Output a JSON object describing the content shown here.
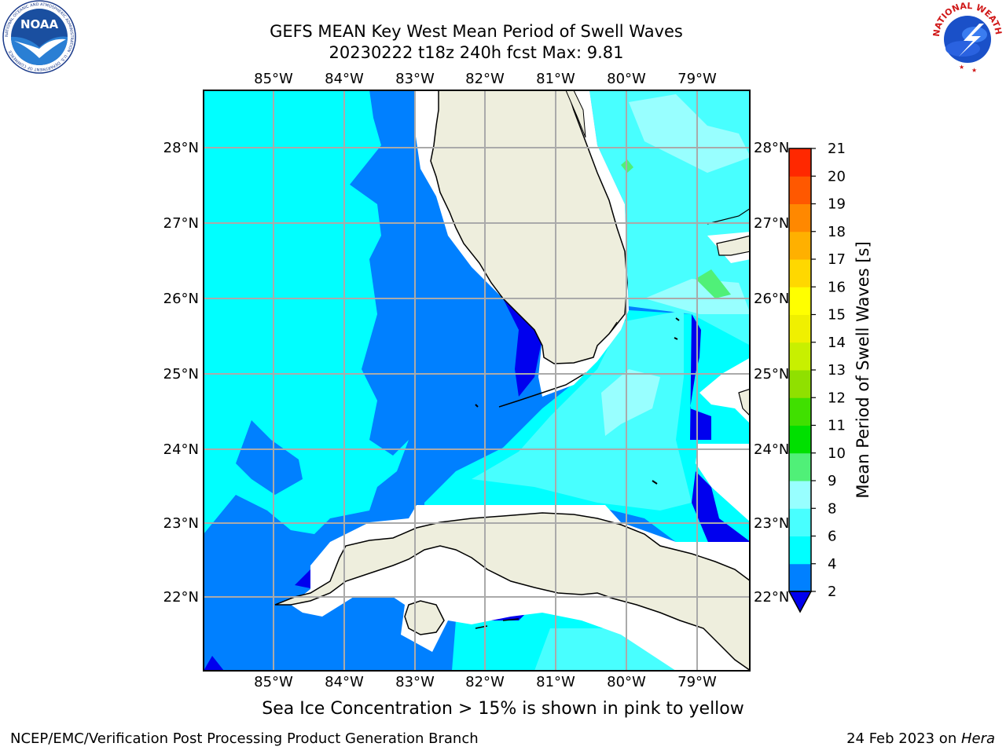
{
  "header": {
    "title_line1": "GEFS MEAN Key West Mean Period of Swell Waves",
    "title_line2": "20230222 t18z 240h fcst    Max: 9.81"
  },
  "logos": {
    "left": {
      "icon": "noaa-logo",
      "text": "NOAA",
      "ring_text": "NATIONAL OCEANIC AND ATMOSPHERIC ADMINISTRATION · U.S. DEPARTMENT OF COMMERCE"
    },
    "right": {
      "icon": "nws-logo",
      "ring_text": "NATIONAL WEATHER SERVICE"
    }
  },
  "map": {
    "lon_labels": [
      "85°W",
      "84°W",
      "83°W",
      "82°W",
      "81°W",
      "80°W",
      "79°W"
    ],
    "lat_labels": [
      "28°N",
      "27°N",
      "26°N",
      "25°N",
      "24°N",
      "23°N",
      "22°N"
    ],
    "colors": {
      "land": "#eeeedd",
      "ocean_2_4": "#0080ff",
      "ocean_4_6": "#00ffff",
      "ocean_6_8": "#48ffff",
      "ocean_8_9": "#98ffff",
      "ocean_lt2": "#0000ee",
      "grid": "#aaaaaa"
    }
  },
  "colorbar": {
    "label": "Mean Period of Swell Waves [s]",
    "ticks": [
      "2",
      "4",
      "6",
      "8",
      "9",
      "10",
      "11",
      "12",
      "13",
      "14",
      "15",
      "16",
      "17",
      "18",
      "19",
      "20",
      "21"
    ],
    "colors": [
      "#0080ff",
      "#00ffff",
      "#48ffff",
      "#98ffff",
      "#50f078",
      "#00e000",
      "#40e000",
      "#90e000",
      "#c8f000",
      "#f0f000",
      "#ffff00",
      "#ffd800",
      "#ffb000",
      "#ff8800",
      "#ff5800",
      "#ff2800",
      "#ff0000"
    ],
    "extend": "min"
  },
  "footer": {
    "ice_note": "Sea Ice Concentration > 15% is shown in pink to yellow",
    "credit": "NCEP/EMC/Verification Post Processing Product Generation Branch",
    "date_prefix": "24 Feb 2023 on ",
    "date_host": "Hera"
  }
}
